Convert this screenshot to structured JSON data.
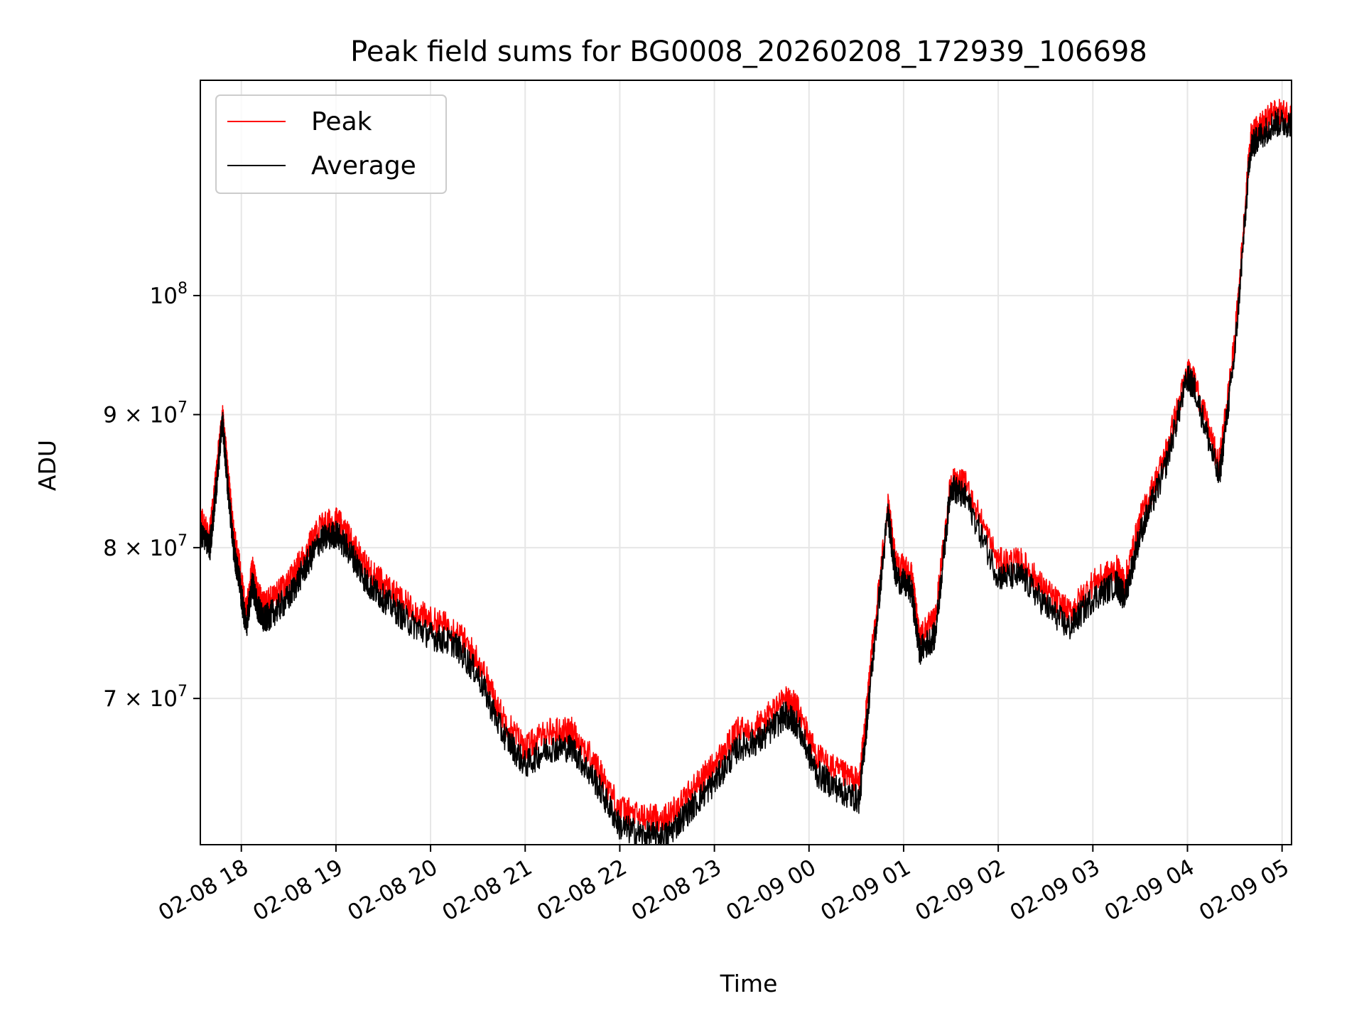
{
  "chart_data": {
    "type": "line",
    "title": "Peak field sums for BG0008_20260208_172939_106698",
    "xlabel": "Time",
    "ylabel": "ADU",
    "yscale": "log",
    "grid": true,
    "legend_position": "upper-left",
    "x_tick_labels": [
      "02-08 18",
      "02-08 19",
      "02-08 20",
      "02-08 21",
      "02-08 22",
      "02-08 23",
      "02-09 00",
      "02-09 01",
      "02-09 02",
      "02-09 03",
      "02-09 04",
      "02-09 05"
    ],
    "x_range": [
      "02-08 17:34",
      "02-09 05:06"
    ],
    "y_range": [
      61500000,
      121000000
    ],
    "y_ticks": [
      {
        "value": 70000000,
        "mantissa": "7",
        "exp": "7"
      },
      {
        "value": 80000000,
        "mantissa": "8",
        "exp": "7"
      },
      {
        "value": 90000000,
        "mantissa": "9",
        "exp": "7"
      },
      {
        "value": 100000000,
        "mantissa": "",
        "exp": "8"
      }
    ],
    "x": [
      "02-08 17:34",
      "02-08 17:40",
      "02-08 17:43",
      "02-08 17:48",
      "02-08 17:51",
      "02-08 17:55",
      "02-08 17:59",
      "02-08 18:03",
      "02-08 18:07",
      "02-08 18:10",
      "02-08 18:14",
      "02-08 18:20",
      "02-08 18:30",
      "02-08 18:40",
      "02-08 18:50",
      "02-08 19:00",
      "02-08 19:10",
      "02-08 19:20",
      "02-08 19:30",
      "02-08 19:45",
      "02-08 20:00",
      "02-08 20:15",
      "02-08 20:30",
      "02-08 20:45",
      "02-08 21:00",
      "02-08 21:15",
      "02-08 21:30",
      "02-08 21:45",
      "02-08 22:00",
      "02-08 22:15",
      "02-08 22:30",
      "02-08 22:45",
      "02-08 23:00",
      "02-08 23:15",
      "02-08 23:30",
      "02-08 23:45",
      "02-08 23:52",
      "02-09 00:05",
      "02-09 00:20",
      "02-09 00:32",
      "02-09 00:40",
      "02-09 00:50",
      "02-09 00:55",
      "02-09 01:05",
      "02-09 01:10",
      "02-09 01:20",
      "02-09 01:30",
      "02-09 01:40",
      "02-09 02:00",
      "02-09 02:15",
      "02-09 02:30",
      "02-09 02:45",
      "02-09 03:00",
      "02-09 03:15",
      "02-09 03:20",
      "02-09 03:30",
      "02-09 03:45",
      "02-09 04:00",
      "02-09 04:05",
      "02-09 04:20",
      "02-09 04:30",
      "02-09 04:40",
      "02-09 04:45",
      "02-09 04:55",
      "02-09 05:06"
    ],
    "series": [
      {
        "name": "Peak",
        "color": "#ff0000",
        "values": [
          82000000,
          81000000,
          84000000,
          90000000,
          86000000,
          81000000,
          78500000,
          75500000,
          78500000,
          77000000,
          76000000,
          76500000,
          77500000,
          79500000,
          81500000,
          82000000,
          80500000,
          78500000,
          77500000,
          76000000,
          75000000,
          74500000,
          72500000,
          69000000,
          67000000,
          68000000,
          68000000,
          66000000,
          63500000,
          63000000,
          63000000,
          64500000,
          66000000,
          68000000,
          68500000,
          70000000,
          69500000,
          66500000,
          65500000,
          65000000,
          73000000,
          83000000,
          79000000,
          78000000,
          74000000,
          75000000,
          85000000,
          84500000,
          79000000,
          79000000,
          77000000,
          75500000,
          77500000,
          78500000,
          77500000,
          82000000,
          86500000,
          93500000,
          92500000,
          86000000,
          96000000,
          115000000,
          116000000,
          117500000,
          117500000
        ]
      },
      {
        "name": "Average",
        "color": "#000000",
        "values": [
          81000000,
          80000000,
          83000000,
          89500000,
          85000000,
          80000000,
          77500000,
          74500000,
          77500000,
          76000000,
          75000000,
          75500000,
          76500000,
          78500000,
          80500000,
          81000000,
          79500000,
          77500000,
          76500000,
          75000000,
          74000000,
          73500000,
          71500000,
          68000000,
          66000000,
          67000000,
          67000000,
          65000000,
          62500000,
          62000000,
          62000000,
          63500000,
          65000000,
          67000000,
          67500000,
          69000000,
          68500000,
          65500000,
          64500000,
          64000000,
          72000000,
          82500000,
          78000000,
          77000000,
          73000000,
          74000000,
          84500000,
          83500000,
          78000000,
          78000000,
          76000000,
          74500000,
          76500000,
          77500000,
          76500000,
          81000000,
          85500000,
          93000000,
          92000000,
          85000000,
          95000000,
          114000000,
          115000000,
          116500000,
          116500000
        ]
      }
    ]
  }
}
